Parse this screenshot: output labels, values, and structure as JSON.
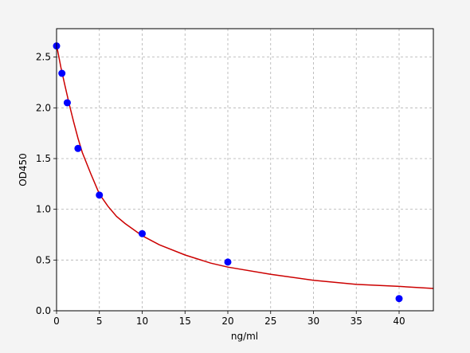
{
  "chart_data": {
    "type": "scatter",
    "title": "",
    "xlabel": "ng/ml",
    "ylabel": "OD450",
    "xlim": [
      0,
      44
    ],
    "ylim": [
      0,
      2.78
    ],
    "grid": true,
    "x_ticks": [
      {
        "value": 0,
        "label": "0"
      },
      {
        "value": 5,
        "label": "5"
      },
      {
        "value": 10,
        "label": "10"
      },
      {
        "value": 15,
        "label": "15"
      },
      {
        "value": 20,
        "label": "20"
      },
      {
        "value": 25,
        "label": "25"
      },
      {
        "value": 30,
        "label": "30"
      },
      {
        "value": 35,
        "label": "35"
      },
      {
        "value": 40,
        "label": "40"
      }
    ],
    "y_ticks": [
      {
        "value": 0.0,
        "label": "0.0"
      },
      {
        "value": 0.5,
        "label": "0.5"
      },
      {
        "value": 1.0,
        "label": "1.0"
      },
      {
        "value": 1.5,
        "label": "1.5"
      },
      {
        "value": 2.0,
        "label": "2.0"
      },
      {
        "value": 2.5,
        "label": "2.5"
      }
    ],
    "points": {
      "x": [
        0,
        0.625,
        1.25,
        2.5,
        5,
        10,
        20,
        40
      ],
      "y": [
        2.61,
        2.34,
        2.05,
        1.6,
        1.14,
        0.76,
        0.48,
        0.12
      ],
      "color": "#0000ff"
    },
    "fit_curve": {
      "x": [
        0,
        0.5,
        1,
        1.5,
        2,
        2.5,
        3,
        4,
        5,
        6,
        7,
        8,
        10,
        12,
        15,
        18,
        20,
        25,
        30,
        35,
        40,
        44
      ],
      "y": [
        2.62,
        2.4,
        2.21,
        2.03,
        1.86,
        1.7,
        1.56,
        1.35,
        1.15,
        1.03,
        0.93,
        0.86,
        0.74,
        0.65,
        0.55,
        0.47,
        0.43,
        0.36,
        0.3,
        0.26,
        0.24,
        0.22
      ],
      "color": "#cc0000"
    }
  }
}
